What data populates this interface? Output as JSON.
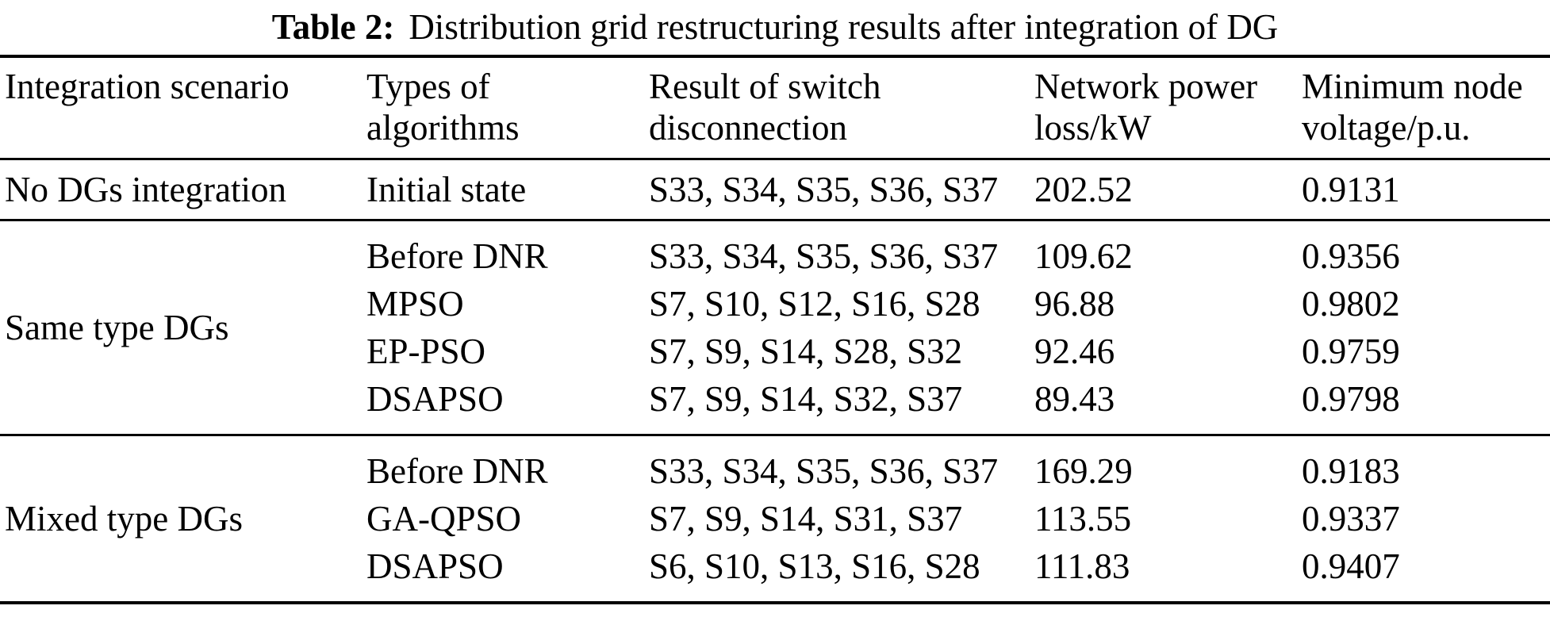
{
  "title": {
    "label": "Table 2:",
    "text": "Distribution grid restructuring results after integration of DG"
  },
  "table": {
    "headers": [
      "Integration scenario",
      "Types of algorithms",
      "Result of switch disconnection",
      "Network power loss/kW",
      "Minimum node voltage/p.u."
    ],
    "sections": [
      {
        "scenario": "No DGs integration",
        "rows": [
          {
            "algorithm": "Initial state",
            "switches": "S33, S34, S35, S36, S37",
            "loss": "202.52",
            "voltage": "0.9131"
          }
        ]
      },
      {
        "scenario": "Same type DGs",
        "rows": [
          {
            "algorithm": "Before DNR",
            "switches": "S33, S34, S35, S36, S37",
            "loss": "109.62",
            "voltage": "0.9356"
          },
          {
            "algorithm": "MPSO",
            "switches": "S7, S10, S12, S16, S28",
            "loss": "96.88",
            "voltage": "0.9802"
          },
          {
            "algorithm": "EP-PSO",
            "switches": "S7, S9, S14, S28, S32",
            "loss": "92.46",
            "voltage": "0.9759"
          },
          {
            "algorithm": "DSAPSO",
            "switches": "S7, S9, S14, S32, S37",
            "loss": "89.43",
            "voltage": "0.9798"
          }
        ]
      },
      {
        "scenario": "Mixed type DGs",
        "rows": [
          {
            "algorithm": "Before DNR",
            "switches": "S33, S34, S35, S36, S37",
            "loss": "169.29",
            "voltage": "0.9183"
          },
          {
            "algorithm": "GA-QPSO",
            "switches": "S7, S9, S14, S31, S37",
            "loss": "113.55",
            "voltage": "0.9337"
          },
          {
            "algorithm": "DSAPSO",
            "switches": "S6, S10, S13, S16, S28",
            "loss": "111.83",
            "voltage": "0.9407"
          }
        ]
      }
    ]
  }
}
